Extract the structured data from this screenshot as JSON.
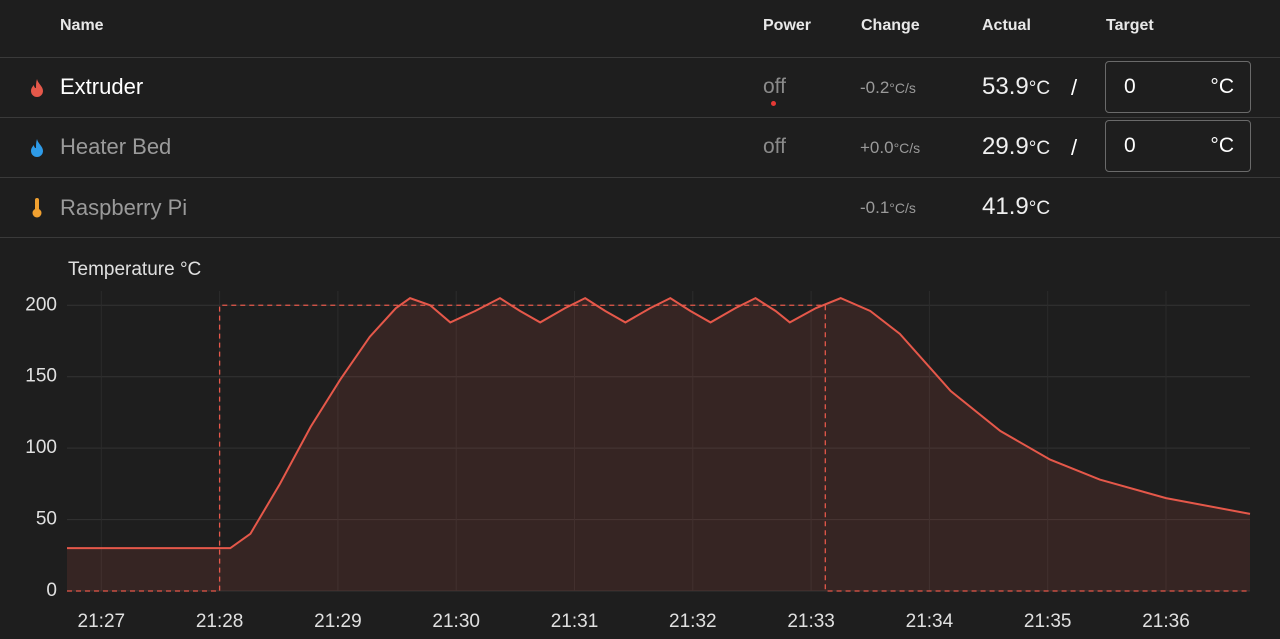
{
  "table": {
    "headers": [
      "Name",
      "Power",
      "Change",
      "Actual",
      "Target"
    ],
    "rows": [
      {
        "name": "Extruder",
        "power": "off",
        "change": "-0.2",
        "change_unit": "°C/s",
        "actual": "53.9",
        "actual_unit": "°C",
        "slash": "/",
        "target": "0",
        "target_unit": "°C"
      },
      {
        "name": "Heater Bed",
        "power": "off",
        "change": "+0.0",
        "change_unit": "°C/s",
        "actual": "29.9",
        "actual_unit": "°C",
        "slash": "/",
        "target": "0",
        "target_unit": "°C"
      },
      {
        "name": "Raspberry Pi",
        "change": "-0.1",
        "change_unit": "°C/s",
        "actual": "41.9",
        "actual_unit": "°C"
      }
    ]
  },
  "chart_data": {
    "type": "line",
    "title": "Temperature °C",
    "grid": true,
    "xlim": [
      1286.71,
      1296.71
    ],
    "xticks": [
      {
        "value": 1287,
        "label": "21:27"
      },
      {
        "value": 1288,
        "label": "21:28"
      },
      {
        "value": 1289,
        "label": "21:29"
      },
      {
        "value": 1290,
        "label": "21:30"
      },
      {
        "value": 1291,
        "label": "21:31"
      },
      {
        "value": 1292,
        "label": "21:32"
      },
      {
        "value": 1293,
        "label": "21:33"
      },
      {
        "value": 1294,
        "label": "21:34"
      },
      {
        "value": 1295,
        "label": "21:35"
      },
      {
        "value": 1296,
        "label": "21:36"
      }
    ],
    "ylim": [
      0,
      210
    ],
    "yticks": [
      0,
      50,
      100,
      150,
      200
    ],
    "series": [
      {
        "color": "#e5584a",
        "fill": true,
        "dashed": false,
        "x": [
          1286.71,
          1288.09,
          1288.26,
          1288.51,
          1288.77,
          1289.02,
          1289.27,
          1289.49,
          1289.61,
          1289.78,
          1289.95,
          1290.16,
          1290.37,
          1290.54,
          1290.71,
          1290.92,
          1291.09,
          1291.26,
          1291.43,
          1291.64,
          1291.81,
          1291.98,
          1292.15,
          1292.36,
          1292.53,
          1292.7,
          1292.82,
          1293.04,
          1293.25,
          1293.5,
          1293.75,
          1294.18,
          1294.6,
          1295.02,
          1295.44,
          1296,
          1296.71
        ],
        "values": [
          30,
          30,
          40,
          75,
          115,
          148,
          178,
          198,
          205,
          200,
          188,
          196,
          205,
          196,
          188,
          198,
          205,
          196,
          188,
          198,
          205,
          196,
          188,
          198,
          205,
          196,
          188,
          198,
          205,
          196,
          180,
          140,
          112,
          92,
          78,
          65,
          54
        ]
      },
      {
        "color": "#e5584a",
        "fill": false,
        "dashed": true,
        "x": [
          1286.71,
          1288,
          1288,
          1293.12,
          1293.12,
          1296.71
        ],
        "values": [
          0,
          0,
          200,
          200,
          0,
          0
        ]
      }
    ]
  }
}
